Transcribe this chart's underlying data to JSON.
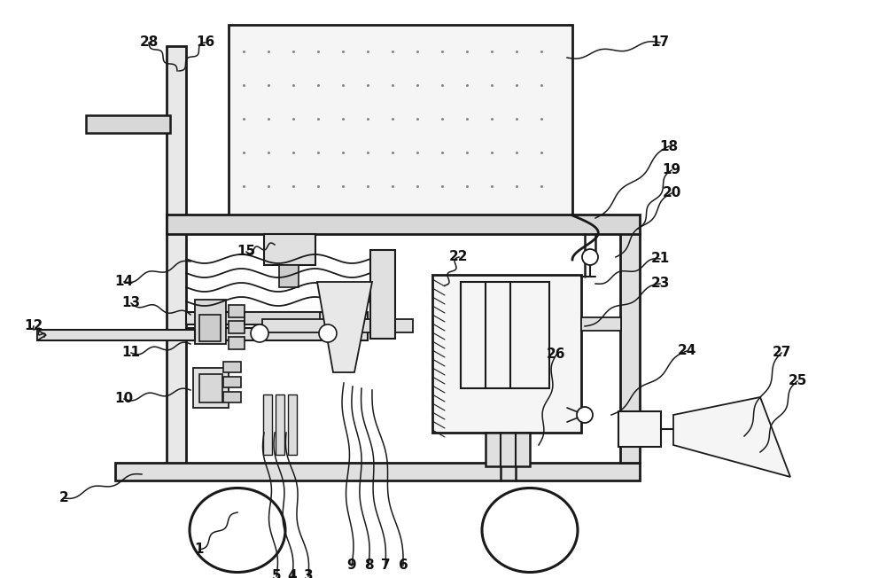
{
  "bg_color": "#ffffff",
  "line_color": "#1a1a1a",
  "label_color": "#111111",
  "figsize": [
    10.0,
    6.52
  ],
  "dpi": 100,
  "labels": [
    [
      "1",
      225,
      620,
      268,
      578
    ],
    [
      "2",
      72,
      562,
      160,
      535
    ],
    [
      "3",
      348,
      650,
      323,
      488
    ],
    [
      "4",
      330,
      650,
      310,
      488
    ],
    [
      "5",
      312,
      650,
      298,
      488
    ],
    [
      "6",
      455,
      638,
      420,
      440
    ],
    [
      "7",
      435,
      638,
      408,
      438
    ],
    [
      "8",
      416,
      638,
      398,
      436
    ],
    [
      "9",
      397,
      638,
      388,
      432
    ],
    [
      "10",
      140,
      450,
      215,
      440
    ],
    [
      "11",
      148,
      398,
      215,
      388
    ],
    [
      "12",
      38,
      368,
      50,
      380
    ],
    [
      "13",
      148,
      342,
      215,
      355
    ],
    [
      "14",
      140,
      318,
      215,
      295
    ],
    [
      "15",
      278,
      284,
      310,
      276
    ],
    [
      "16",
      232,
      48,
      202,
      80
    ],
    [
      "17",
      745,
      48,
      640,
      65
    ],
    [
      "18",
      755,
      165,
      672,
      246
    ],
    [
      "19",
      758,
      192,
      720,
      258
    ],
    [
      "20",
      758,
      218,
      695,
      290
    ],
    [
      "21",
      745,
      292,
      672,
      320
    ],
    [
      "22",
      518,
      290,
      502,
      322
    ],
    [
      "23",
      745,
      320,
      660,
      368
    ],
    [
      "24",
      775,
      396,
      690,
      468
    ],
    [
      "25",
      900,
      430,
      858,
      510
    ],
    [
      "26",
      628,
      400,
      608,
      502
    ],
    [
      "27",
      882,
      398,
      840,
      492
    ],
    [
      "28",
      168,
      48,
      200,
      80
    ]
  ]
}
